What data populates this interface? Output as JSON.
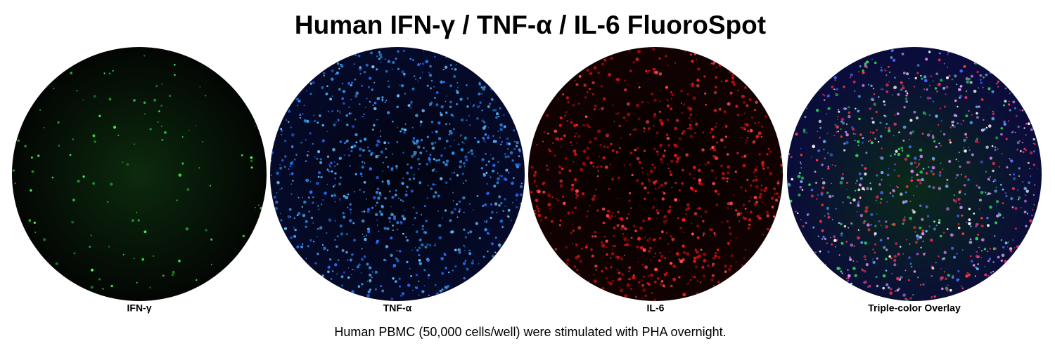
{
  "title": "Human IFN-γ / TNF-α / IL-6 FluoroSpot",
  "panels": [
    {
      "label": "IFN-γ"
    },
    {
      "label": "TNF-α"
    },
    {
      "label": "IL-6"
    },
    {
      "label": "Triple-color Overlay"
    }
  ],
  "caption": "Human PBMC (50,000 cells/well) were stimulated with PHA overnight."
}
